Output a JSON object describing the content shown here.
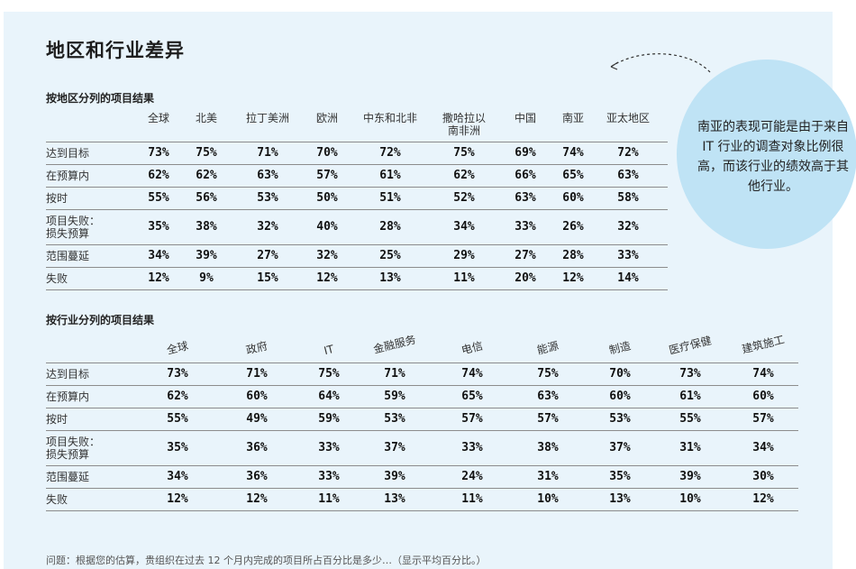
{
  "title": "地区和行业差异",
  "callout": "南亚的表现可能是由于来自 IT 行业的调查对象比例很高，而该行业的绩效高于其他行业。",
  "note": "问题：根据您的估算，贵组织在过去 12 个月内完成的项目所占百分比是多少…（显示平均百分比。）",
  "region": {
    "title": "按地区分列的项目结果",
    "columns": [
      "全球",
      "北美",
      "拉丁美洲",
      "欧洲",
      "中东和北非",
      "撒哈拉以\n南非洲",
      "中国",
      "南亚",
      "亚太地区"
    ],
    "rows": [
      {
        "label": "达到目标",
        "values": [
          "73%",
          "75%",
          "71%",
          "70%",
          "72%",
          "75%",
          "69%",
          "74%",
          "72%"
        ]
      },
      {
        "label": "在预算内",
        "values": [
          "62%",
          "62%",
          "63%",
          "57%",
          "61%",
          "62%",
          "66%",
          "65%",
          "63%"
        ]
      },
      {
        "label": "按时",
        "values": [
          "55%",
          "56%",
          "53%",
          "50%",
          "51%",
          "52%",
          "63%",
          "60%",
          "58%"
        ]
      },
      {
        "label": "项目失败：\n损失预算",
        "values": [
          "35%",
          "38%",
          "32%",
          "40%",
          "28%",
          "34%",
          "33%",
          "26%",
          "32%"
        ]
      },
      {
        "label": "范围蔓延",
        "values": [
          "34%",
          "39%",
          "27%",
          "32%",
          "25%",
          "29%",
          "27%",
          "28%",
          "33%"
        ]
      },
      {
        "label": "失败",
        "values": [
          "12%",
          "9%",
          "15%",
          "12%",
          "13%",
          "11%",
          "20%",
          "12%",
          "14%"
        ]
      }
    ]
  },
  "industry": {
    "title": "按行业分列的项目结果",
    "columns": [
      "全球",
      "政府",
      "IT",
      "金融服务",
      "电信",
      "能源",
      "制造",
      "医疗保健",
      "建筑施工"
    ],
    "rows": [
      {
        "label": "达到目标",
        "values": [
          "73%",
          "71%",
          "75%",
          "71%",
          "74%",
          "75%",
          "70%",
          "73%",
          "74%"
        ]
      },
      {
        "label": "在预算内",
        "values": [
          "62%",
          "60%",
          "64%",
          "59%",
          "65%",
          "63%",
          "60%",
          "61%",
          "60%"
        ]
      },
      {
        "label": "按时",
        "values": [
          "55%",
          "49%",
          "59%",
          "53%",
          "57%",
          "57%",
          "53%",
          "55%",
          "57%"
        ]
      },
      {
        "label": "项目失败：\n损失预算",
        "values": [
          "35%",
          "36%",
          "33%",
          "37%",
          "33%",
          "38%",
          "37%",
          "31%",
          "34%"
        ]
      },
      {
        "label": "范围蔓延",
        "values": [
          "34%",
          "36%",
          "33%",
          "39%",
          "24%",
          "31%",
          "35%",
          "39%",
          "30%"
        ]
      },
      {
        "label": "失败",
        "values": [
          "12%",
          "12%",
          "11%",
          "13%",
          "11%",
          "10%",
          "13%",
          "10%",
          "12%"
        ]
      }
    ]
  }
}
